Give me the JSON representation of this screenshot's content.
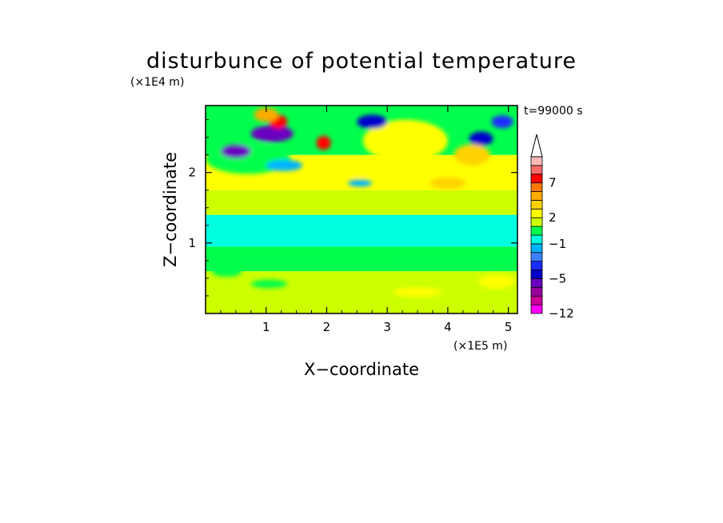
{
  "chart_data": {
    "type": "heatmap",
    "title": "disturbunce of potential temperature",
    "time_label": "t=99000 s",
    "xlabel": "X−coordinate",
    "ylabel": "Z−coordinate",
    "x_unit": "(×1E5 m)",
    "y_unit": "(×1E4 m)",
    "xlim": [
      0,
      5.15
    ],
    "ylim": [
      0,
      2.95
    ],
    "x_ticks": [
      1,
      2,
      3,
      4,
      5
    ],
    "x_tick_labels": [
      "1",
      "2",
      "3",
      "4",
      "5"
    ],
    "y_ticks": [
      1,
      2
    ],
    "y_tick_labels": [
      "1",
      "2"
    ],
    "grid": false,
    "colorbar": {
      "levels": [
        -12,
        -10,
        -8,
        -6,
        -5,
        -4,
        -3,
        -2,
        -1,
        0,
        1,
        2,
        3,
        4,
        5,
        7,
        9,
        11
      ],
      "colors": [
        "#ff00ff",
        "#cc0099",
        "#99009e",
        "#6a00c0",
        "#0000cc",
        "#1a2cff",
        "#3c82ff",
        "#00b4ff",
        "#00ffe1",
        "#00ff4c",
        "#ccff00",
        "#ffff00",
        "#ffd200",
        "#ffaa00",
        "#ff7700",
        "#ff0000",
        "#ff6b6b",
        "#ffbbbb"
      ],
      "labels": [
        {
          "level": -12,
          "text": "−12"
        },
        {
          "level": -5,
          "text": "−5"
        },
        {
          "level": -1,
          "text": "−1"
        },
        {
          "level": 2,
          "text": "2"
        },
        {
          "level": 7,
          "text": "7"
        }
      ],
      "extend": "max"
    },
    "bands": [
      {
        "z_from": 0.0,
        "z_to": 0.6,
        "value": 1.5
      },
      {
        "z_from": 0.6,
        "z_to": 0.95,
        "value": 0.5
      },
      {
        "z_from": 0.95,
        "z_to": 1.4,
        "value": -0.5
      },
      {
        "z_from": 1.4,
        "z_to": 1.75,
        "value": 1.0
      },
      {
        "z_from": 1.75,
        "z_to": 2.25,
        "value": 2.5
      },
      {
        "z_from": 2.25,
        "z_to": 2.95,
        "value": 0.0
      }
    ],
    "blobs": [
      {
        "x": 0.7,
        "z": 2.2,
        "value": 0.5,
        "rx": 0.7,
        "rz": 0.22
      },
      {
        "x": 3.3,
        "z": 2.45,
        "value": 2.5,
        "rx": 0.7,
        "rz": 0.3
      },
      {
        "x": 1.1,
        "z": 2.55,
        "value": -5.5,
        "rx": 0.35,
        "rz": 0.12
      },
      {
        "x": 0.5,
        "z": 2.3,
        "value": -5.5,
        "rx": 0.25,
        "rz": 0.1
      },
      {
        "x": 1.2,
        "z": 2.72,
        "value": 7.0,
        "rx": 0.15,
        "rz": 0.1
      },
      {
        "x": 1.0,
        "z": 2.82,
        "value": 4.0,
        "rx": 0.2,
        "rz": 0.1
      },
      {
        "x": 1.95,
        "z": 2.42,
        "value": 7.0,
        "rx": 0.12,
        "rz": 0.1
      },
      {
        "x": 2.75,
        "z": 2.72,
        "value": -5.0,
        "rx": 0.25,
        "rz": 0.1
      },
      {
        "x": 4.55,
        "z": 2.48,
        "value": -5.0,
        "rx": 0.2,
        "rz": 0.1
      },
      {
        "x": 4.9,
        "z": 2.72,
        "value": -4.0,
        "rx": 0.18,
        "rz": 0.09
      },
      {
        "x": 1.3,
        "z": 2.1,
        "value": -2.0,
        "rx": 0.3,
        "rz": 0.08
      },
      {
        "x": 2.55,
        "z": 1.85,
        "value": -1.5,
        "rx": 0.2,
        "rz": 0.05
      },
      {
        "x": 4.4,
        "z": 2.25,
        "value": 3.5,
        "rx": 0.3,
        "rz": 0.15
      },
      {
        "x": 2.5,
        "z": 2.05,
        "value": 2.0,
        "rx": 0.4,
        "rz": 0.1
      },
      {
        "x": 4.0,
        "z": 1.85,
        "value": 3.0,
        "rx": 0.3,
        "rz": 0.08
      },
      {
        "x": 0.35,
        "z": 0.6,
        "value": 0.5,
        "rx": 0.25,
        "rz": 0.08
      },
      {
        "x": 1.05,
        "z": 0.42,
        "value": 0.5,
        "rx": 0.3,
        "rz": 0.06
      },
      {
        "x": 2.5,
        "z": 0.75,
        "value": 0.5,
        "rx": 0.5,
        "rz": 0.06
      },
      {
        "x": 4.8,
        "z": 0.45,
        "value": 2.5,
        "rx": 0.3,
        "rz": 0.1
      },
      {
        "x": 3.5,
        "z": 0.3,
        "value": 2.5,
        "rx": 0.4,
        "rz": 0.07
      },
      {
        "x": 4.2,
        "z": 1.28,
        "value": -0.5,
        "rx": 0.5,
        "rz": 0.05
      }
    ]
  }
}
